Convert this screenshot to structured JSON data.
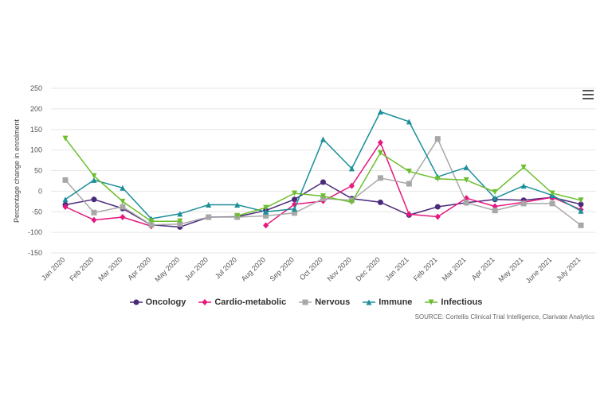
{
  "chart_data": {
    "type": "line",
    "title": "",
    "xlabel": "",
    "ylabel": "Percentage change in enrolment",
    "ylim": [
      -150,
      250
    ],
    "yticks": [
      -150,
      -100,
      -50,
      0,
      50,
      100,
      150,
      200,
      250
    ],
    "categories": [
      "Jan 2020",
      "Feb 2020",
      "Mar 2020",
      "Apr 2020",
      "May 2020",
      "Jun 2020",
      "Jul 2020",
      "Aug 2020",
      "Sep 2020",
      "Oct 2020",
      "Nov 2020",
      "Dec 2020",
      "Jan 2021",
      "Feb 2021",
      "Mar 2021",
      "Apr 2021",
      "May 2021",
      "June 2021",
      "July 2021"
    ],
    "series": [
      {
        "name": "Oncology",
        "color": "#4b2a7b",
        "marker": "circle",
        "values": [
          -33,
          -20,
          -42,
          -82,
          -87,
          -63,
          -62,
          -47,
          -20,
          22,
          -18,
          -27,
          -58,
          -38,
          -28,
          -20,
          -22,
          -15,
          -32
        ]
      },
      {
        "name": "Cardio-metabolic",
        "color": "#e6177e",
        "marker": "diamond",
        "values": [
          -38,
          -70,
          -63,
          -85,
          null,
          null,
          null,
          -83,
          -32,
          -24,
          13,
          118,
          -56,
          -62,
          -17,
          -37,
          -27,
          -15,
          -45
        ]
      },
      {
        "name": "Nervous",
        "color": "#a8a8a8",
        "marker": "square",
        "values": [
          27,
          -52,
          -38,
          -82,
          -80,
          -63,
          -63,
          -60,
          -53,
          -18,
          -22,
          32,
          18,
          127,
          -28,
          -47,
          -30,
          -30,
          -83
        ]
      },
      {
        "name": "Immune",
        "color": "#1a8e99",
        "marker": "triangle-up",
        "values": [
          -20,
          27,
          8,
          -67,
          -55,
          -33,
          -33,
          -50,
          -43,
          126,
          55,
          193,
          169,
          35,
          58,
          -17,
          13,
          -10,
          -48
        ]
      },
      {
        "name": "Infectious",
        "color": "#6cbe2e",
        "marker": "triangle-down",
        "values": [
          128,
          37,
          -25,
          -73,
          -73,
          null,
          -60,
          -40,
          -5,
          -12,
          -27,
          93,
          48,
          30,
          27,
          -2,
          58,
          -5,
          -22
        ]
      }
    ],
    "legend_position": "bottom-center",
    "grid": true,
    "source": "SOURCE: Cortellis Clinical Trial Intelligence, Clarivate Analytics"
  }
}
